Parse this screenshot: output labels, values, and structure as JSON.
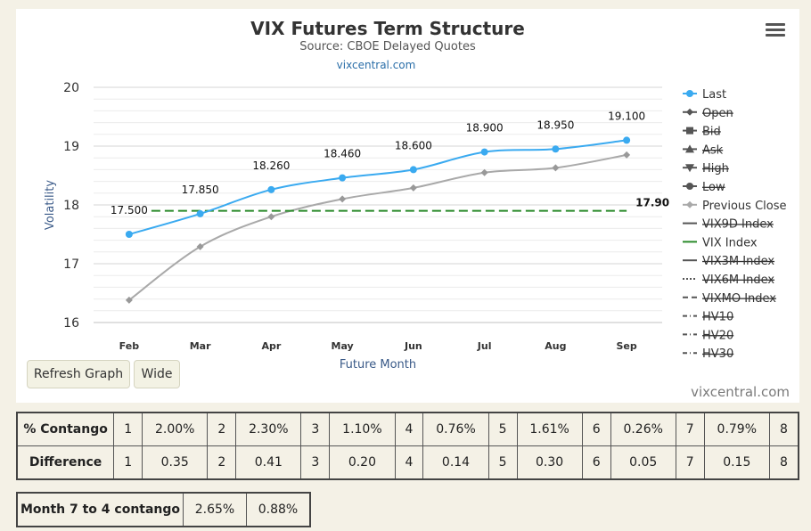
{
  "chart_data": {
    "type": "line",
    "title": "VIX Futures Term Structure",
    "subtitle": "Source: CBOE Delayed Quotes",
    "subtitle_link": "vixcentral.com",
    "xlabel": "Future Month",
    "ylabel": "Volatility",
    "categories": [
      "Feb",
      "Mar",
      "Apr",
      "May",
      "Jun",
      "Jul",
      "Aug",
      "Sep"
    ],
    "ylim": [
      16,
      20
    ],
    "yticks": [
      "20",
      "19",
      "18",
      "17",
      "16"
    ],
    "grid": true,
    "legend_position": "right",
    "series": [
      {
        "name": "Last",
        "values": [
          17.5,
          17.85,
          18.26,
          18.46,
          18.6,
          18.9,
          18.95,
          19.1
        ],
        "labels": [
          "17.500",
          "17.850",
          "18.260",
          "18.460",
          "18.600",
          "18.900",
          "18.950",
          "19.100"
        ],
        "color": "#3aaaf0"
      },
      {
        "name": "Previous Close",
        "values": [
          16.38,
          17.29,
          17.8,
          18.1,
          18.29,
          18.55,
          18.63,
          18.85
        ],
        "color": "#a9a9a9"
      },
      {
        "name": "VIX Index",
        "values": [
          17.9,
          17.9,
          17.9,
          17.9,
          17.9,
          17.9,
          17.9,
          17.9
        ],
        "end_label": "17.90",
        "color": "#2a8a2a"
      }
    ],
    "legend": [
      {
        "name": "Last",
        "symbol": "circle-line",
        "color": "#3aaaf0",
        "hidden": false
      },
      {
        "name": "Open",
        "symbol": "diamond-line",
        "color": "#444444",
        "hidden": true
      },
      {
        "name": "Bid",
        "symbol": "square-line",
        "color": "#444444",
        "hidden": true
      },
      {
        "name": "Ask",
        "symbol": "triangle-line",
        "color": "#444444",
        "hidden": true
      },
      {
        "name": "High",
        "symbol": "triangle-down-line",
        "color": "#444444",
        "hidden": true
      },
      {
        "name": "Low",
        "symbol": "circle-line",
        "color": "#444444",
        "hidden": true
      },
      {
        "name": "Previous Close",
        "symbol": "diamond-line",
        "color": "#a9a9a9",
        "hidden": false
      },
      {
        "name": "VIX9D Index",
        "symbol": "solid",
        "color": "#555555",
        "hidden": true
      },
      {
        "name": "VIX Index",
        "symbol": "solid",
        "color": "#2a8a2a",
        "hidden": false
      },
      {
        "name": "VIX3M Index",
        "symbol": "solid",
        "color": "#555555",
        "hidden": true
      },
      {
        "name": "VIX6M Index",
        "symbol": "dotted",
        "color": "#555555",
        "hidden": true
      },
      {
        "name": "VIXMO Index",
        "symbol": "dashed",
        "color": "#555555",
        "hidden": true
      },
      {
        "name": "HV10",
        "symbol": "dash-dot",
        "color": "#555555",
        "hidden": true
      },
      {
        "name": "HV20",
        "symbol": "dash-dot",
        "color": "#555555",
        "hidden": true
      },
      {
        "name": "HV30",
        "symbol": "dash-dot",
        "color": "#555555",
        "hidden": true
      }
    ]
  },
  "controls": {
    "refresh_label": "Refresh Graph",
    "wide_label": "Wide",
    "menu_icon": "hamburger-menu-icon"
  },
  "credits": "vixcentral.com",
  "contango_table": {
    "rows": [
      {
        "header": "% Contango",
        "cells": [
          "1",
          "2.00%",
          "2",
          "2.30%",
          "3",
          "1.10%",
          "4",
          "0.76%",
          "5",
          "1.61%",
          "6",
          "0.26%",
          "7",
          "0.79%",
          "8"
        ]
      },
      {
        "header": "Difference",
        "cells": [
          "1",
          "0.35",
          "2",
          "0.41",
          "3",
          "0.20",
          "4",
          "0.14",
          "5",
          "0.30",
          "6",
          "0.05",
          "7",
          "0.15",
          "8"
        ]
      }
    ]
  },
  "month_contango": {
    "header": "Month 7 to 4 contango",
    "values": [
      "2.65%",
      "0.88%"
    ]
  }
}
